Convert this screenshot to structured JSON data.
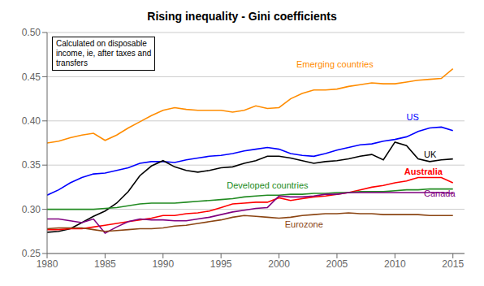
{
  "chart_data": {
    "type": "line",
    "title": "Rising inequality - Gini coefficients",
    "annotation": "Calculated on disposable\nincome, ie, after taxes and\ntransfers",
    "x": [
      1980,
      1981,
      1982,
      1983,
      1984,
      1985,
      1986,
      1987,
      1988,
      1989,
      1990,
      1991,
      1992,
      1993,
      1994,
      1995,
      1996,
      1997,
      1998,
      1999,
      2000,
      2001,
      2002,
      2003,
      2004,
      2005,
      2006,
      2007,
      2008,
      2009,
      2010,
      2011,
      2012,
      2013,
      2014,
      2015
    ],
    "series": [
      {
        "name": "Emerging countries",
        "color": "#FF8C00",
        "values": [
          0.375,
          0.377,
          0.381,
          0.384,
          0.386,
          0.378,
          0.384,
          0.392,
          0.399,
          0.406,
          0.412,
          0.415,
          0.413,
          0.412,
          0.412,
          0.412,
          0.41,
          0.412,
          0.417,
          0.414,
          0.415,
          0.425,
          0.431,
          0.435,
          0.435,
          0.436,
          0.439,
          0.441,
          0.443,
          0.442,
          0.442,
          0.444,
          0.446,
          0.447,
          0.448,
          0.459
        ]
      },
      {
        "name": "US",
        "color": "#0000FF",
        "values": [
          0.316,
          0.322,
          0.33,
          0.336,
          0.34,
          0.341,
          0.344,
          0.347,
          0.352,
          0.354,
          0.354,
          0.353,
          0.356,
          0.358,
          0.36,
          0.361,
          0.363,
          0.366,
          0.368,
          0.37,
          0.368,
          0.363,
          0.361,
          0.36,
          0.363,
          0.367,
          0.37,
          0.373,
          0.374,
          0.377,
          0.379,
          0.382,
          0.388,
          0.392,
          0.393,
          0.389
        ]
      },
      {
        "name": "UK",
        "color": "#000000",
        "values": [
          0.274,
          0.275,
          0.278,
          0.285,
          0.292,
          0.298,
          0.307,
          0.32,
          0.338,
          0.349,
          0.355,
          0.348,
          0.344,
          0.342,
          0.344,
          0.347,
          0.348,
          0.352,
          0.355,
          0.36,
          0.36,
          0.358,
          0.355,
          0.352,
          0.354,
          0.355,
          0.357,
          0.36,
          0.362,
          0.356,
          0.376,
          0.372,
          0.357,
          0.354,
          0.356,
          0.357
        ]
      },
      {
        "name": "Australia",
        "color": "#FF0000",
        "values": [
          0.277,
          0.277,
          0.278,
          0.278,
          0.28,
          0.282,
          0.284,
          0.286,
          0.288,
          0.29,
          0.293,
          0.293,
          0.295,
          0.296,
          0.298,
          0.302,
          0.306,
          0.307,
          0.308,
          0.308,
          0.313,
          0.31,
          0.312,
          0.314,
          0.315,
          0.317,
          0.319,
          0.322,
          0.325,
          0.327,
          0.33,
          0.332,
          0.336,
          0.336,
          0.336,
          0.33
        ]
      },
      {
        "name": "Developed countries",
        "color": "#228B22",
        "values": [
          0.3,
          0.3,
          0.3,
          0.3,
          0.3,
          0.301,
          0.302,
          0.304,
          0.306,
          0.307,
          0.307,
          0.307,
          0.308,
          0.309,
          0.31,
          0.311,
          0.312,
          0.314,
          0.315,
          0.316,
          0.316,
          0.317,
          0.317,
          0.318,
          0.318,
          0.319,
          0.319,
          0.32,
          0.32,
          0.32,
          0.321,
          0.322,
          0.322,
          0.323,
          0.323,
          0.323
        ]
      },
      {
        "name": "Canada",
        "color": "#800080",
        "values": [
          0.289,
          0.289,
          0.287,
          0.285,
          0.289,
          0.273,
          0.28,
          0.286,
          0.289,
          0.288,
          0.288,
          0.287,
          0.287,
          0.289,
          0.291,
          0.294,
          0.297,
          0.299,
          0.301,
          0.302,
          0.315,
          0.314,
          0.314,
          0.315,
          0.317,
          0.317,
          0.319,
          0.319,
          0.319,
          0.319,
          0.319,
          0.319,
          0.319,
          0.319,
          0.319,
          0.318
        ]
      },
      {
        "name": "Eurozone",
        "color": "#8B4513",
        "values": [
          0.278,
          0.279,
          0.279,
          0.279,
          0.277,
          0.275,
          0.276,
          0.277,
          0.278,
          0.278,
          0.279,
          0.281,
          0.282,
          0.284,
          0.286,
          0.288,
          0.291,
          0.293,
          0.292,
          0.291,
          0.29,
          0.291,
          0.293,
          0.294,
          0.295,
          0.295,
          0.296,
          0.295,
          0.295,
          0.294,
          0.294,
          0.294,
          0.294,
          0.293,
          0.293,
          0.293
        ]
      }
    ],
    "xlim": [
      1980,
      2016
    ],
    "ylim": [
      0.25,
      0.5
    ],
    "xticks": [
      1980,
      1985,
      1990,
      1995,
      2000,
      2005,
      2010,
      2015
    ],
    "yticks": [
      0.25,
      {
        "value": 0.3,
        "label": "0.30"
      },
      0.35,
      {
        "value": 0.4,
        "label": "0.40"
      },
      0.45,
      {
        "value": 0.5,
        "label": "0.50"
      }
    ],
    "grid": true
  }
}
